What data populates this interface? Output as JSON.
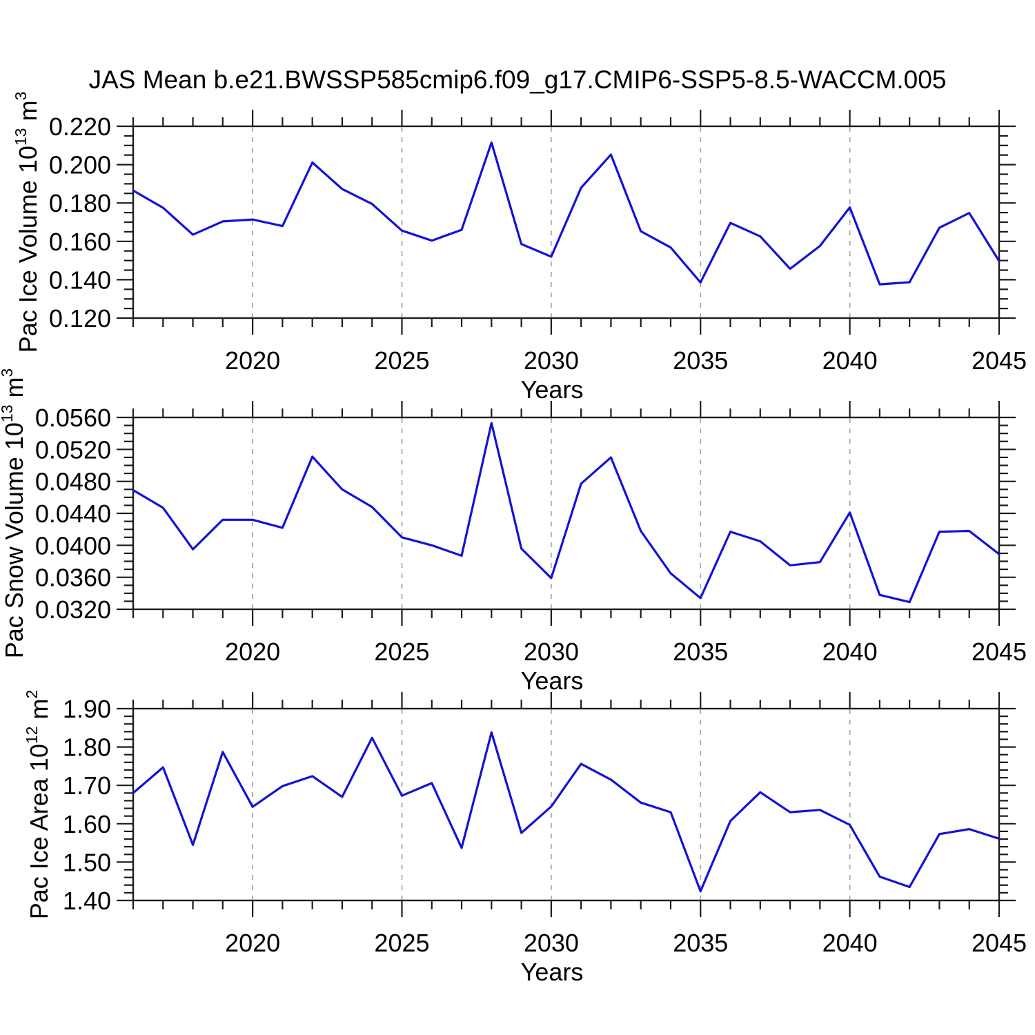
{
  "figure": {
    "title": "JAS Mean b.e21.BWSSP585cmip6.f09_g17.CMIP6-SSP5-8.5-WACCM.005",
    "background": "#ffffff"
  },
  "colors": {
    "line": "#1312d8",
    "grid": "#a9a9a9",
    "axis": "#1c1c1c",
    "text": "#000000"
  },
  "x_axis": {
    "label": "Years",
    "range": [
      2016,
      2045
    ],
    "major_ticks": [
      2020,
      2025,
      2030,
      2035,
      2040,
      2045
    ],
    "minor_step": 1
  },
  "chart_data": [
    {
      "id": "pac-ice-volume",
      "type": "line",
      "title": "",
      "xlabel": "Years",
      "ylabel": "Pac Ice Volume 10^13 m^3",
      "ylabel_parts": [
        {
          "text": "Pac Ice Volume 10"
        },
        {
          "text": "13",
          "sup": true
        },
        {
          "text": " m"
        },
        {
          "text": "3",
          "sup": true
        }
      ],
      "ylim": [
        0.12,
        0.22
      ],
      "ytick_major": 0.02,
      "ytick_minor": 0.005,
      "ytick_decimals": 3,
      "ytick_labels": [
        "0.120",
        "0.140",
        "0.160",
        "0.180",
        "0.200",
        "0.220"
      ],
      "x": [
        2016,
        2017,
        2018,
        2019,
        2020,
        2021,
        2022,
        2023,
        2024,
        2025,
        2026,
        2027,
        2028,
        2029,
        2030,
        2031,
        2032,
        2033,
        2034,
        2035,
        2036,
        2037,
        2038,
        2039,
        2040,
        2041,
        2042,
        2043,
        2044,
        2045
      ],
      "values": [
        0.1865,
        0.1775,
        0.1635,
        0.1704,
        0.1714,
        0.168,
        0.2011,
        0.1873,
        0.1795,
        0.1656,
        0.1604,
        0.166,
        0.2115,
        0.1586,
        0.152,
        0.1879,
        0.2052,
        0.1653,
        0.1568,
        0.1386,
        0.1696,
        0.1626,
        0.1457,
        0.1576,
        0.1777,
        0.1376,
        0.1387,
        0.1671,
        0.1748,
        0.1497
      ]
    },
    {
      "id": "pac-snow-volume",
      "type": "line",
      "title": "",
      "xlabel": "Years",
      "ylabel": "Pac Snow Volume 10^13 m^3",
      "ylabel_parts": [
        {
          "text": "Pac Snow Volume 10"
        },
        {
          "text": "13",
          "sup": true
        },
        {
          "text": " m"
        },
        {
          "text": "3",
          "sup": true
        }
      ],
      "ylim": [
        0.032,
        0.056
      ],
      "ytick_major": 0.004,
      "ytick_minor": 0.001,
      "ytick_decimals": 4,
      "ytick_labels": [
        "0.0320",
        "0.0360",
        "0.0400",
        "0.0440",
        "0.0480",
        "0.0520",
        "0.0560"
      ],
      "x": [
        2016,
        2017,
        2018,
        2019,
        2020,
        2021,
        2022,
        2023,
        2024,
        2025,
        2026,
        2027,
        2028,
        2029,
        2030,
        2031,
        2032,
        2033,
        2034,
        2035,
        2036,
        2037,
        2038,
        2039,
        2040,
        2041,
        2042,
        2043,
        2044,
        2045
      ],
      "values": [
        0.0469,
        0.0447,
        0.0395,
        0.0432,
        0.0432,
        0.0422,
        0.0511,
        0.047,
        0.0448,
        0.041,
        0.04,
        0.0387,
        0.0553,
        0.0396,
        0.0359,
        0.0477,
        0.051,
        0.0418,
        0.0365,
        0.0334,
        0.0417,
        0.0405,
        0.0375,
        0.0379,
        0.0441,
        0.0338,
        0.0329,
        0.0417,
        0.0418,
        0.0389
      ]
    },
    {
      "id": "pac-ice-area",
      "type": "line",
      "title": "",
      "xlabel": "Years",
      "ylabel": "Pac Ice Area 10^12 m^2",
      "ylabel_parts": [
        {
          "text": "Pac Ice Area 10"
        },
        {
          "text": "12",
          "sup": true
        },
        {
          "text": " m"
        },
        {
          "text": "2",
          "sup": true
        }
      ],
      "ylim": [
        1.4,
        1.9
      ],
      "ytick_major": 0.1,
      "ytick_minor": 0.02,
      "ytick_decimals": 2,
      "ytick_labels": [
        "1.40",
        "1.50",
        "1.60",
        "1.70",
        "1.80",
        "1.90"
      ],
      "x": [
        2016,
        2017,
        2018,
        2019,
        2020,
        2021,
        2022,
        2023,
        2024,
        2025,
        2026,
        2027,
        2028,
        2029,
        2030,
        2031,
        2032,
        2033,
        2034,
        2035,
        2036,
        2037,
        2038,
        2039,
        2040,
        2041,
        2042,
        2043,
        2044,
        2045
      ],
      "values": [
        1.68,
        1.747,
        1.545,
        1.787,
        1.644,
        1.698,
        1.724,
        1.67,
        1.824,
        1.673,
        1.706,
        1.537,
        1.838,
        1.576,
        1.645,
        1.756,
        1.715,
        1.655,
        1.63,
        1.424,
        1.607,
        1.682,
        1.63,
        1.636,
        1.597,
        1.462,
        1.435,
        1.573,
        1.586,
        1.561
      ]
    }
  ]
}
